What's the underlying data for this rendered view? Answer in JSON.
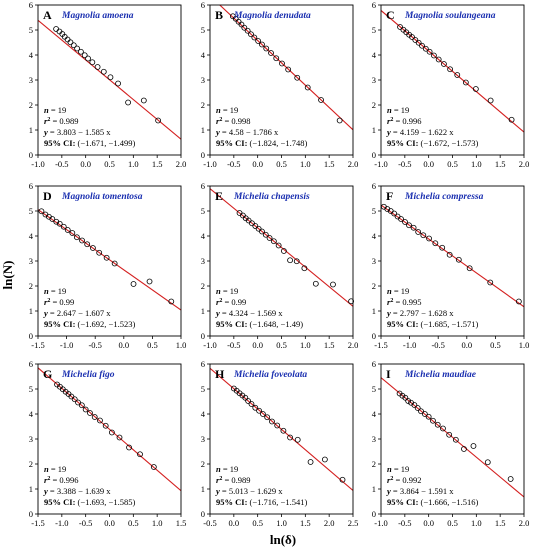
{
  "figure": {
    "ylabel_main": "ln(N)",
    "xlabel_main": "ln(δ)",
    "colors": {
      "fit_line": "#d42020",
      "species_title": "#1a2fb0",
      "axis": "#000000",
      "points": "#000000"
    }
  },
  "chart_data": [
    {
      "type": "scatter",
      "panel": "A",
      "title": "Magnolia amoena",
      "xlim": [
        -1.0,
        2.0
      ],
      "ylim": [
        0,
        6
      ],
      "xticks": [
        "-1.0",
        "-0.5",
        "0.0",
        "0.5",
        "1.0",
        "1.5",
        "2.0"
      ],
      "yticks": [
        "0",
        "1",
        "2",
        "3",
        "4",
        "5",
        "6"
      ],
      "stats": {
        "n": "= 19",
        "r2": "= 0.989",
        "eq": "= 3.803 − 1.585 x",
        "ci": "(−1.671, −1.499)"
      },
      "fit": {
        "intercept": 3.803,
        "slope": -1.585
      },
      "points": {
        "x": [
          -0.62,
          -0.55,
          -0.49,
          -0.44,
          -0.38,
          -0.32,
          -0.25,
          -0.18,
          -0.1,
          -0.02,
          0.05,
          0.14,
          0.25,
          0.38,
          0.52,
          0.68,
          0.89,
          1.22,
          1.52
        ],
        "y": [
          5.04,
          4.94,
          4.84,
          4.73,
          4.62,
          4.51,
          4.39,
          4.26,
          4.13,
          3.99,
          3.86,
          3.71,
          3.52,
          3.33,
          3.11,
          2.86,
          2.1,
          2.18,
          1.38
        ]
      }
    },
    {
      "type": "scatter",
      "panel": "B",
      "title": "Magnolia denudata",
      "xlim": [
        -1.0,
        2.0
      ],
      "ylim": [
        0,
        6
      ],
      "xticks": [
        "-1.0",
        "-0.5",
        "0.0",
        "0.5",
        "1.0",
        "1.5",
        "2.0"
      ],
      "yticks": [
        "0",
        "1",
        "2",
        "3",
        "4",
        "5",
        "6"
      ],
      "stats": {
        "n": "= 19",
        "r2": "= 0.998",
        "eq": "= 4.58 − 1.786 x",
        "ci": "(−1.824, −1.748)"
      },
      "fit": {
        "intercept": 4.58,
        "slope": -1.786
      },
      "points": {
        "x": [
          -0.52,
          -0.46,
          -0.4,
          -0.34,
          -0.28,
          -0.21,
          -0.14,
          -0.07,
          0.01,
          0.09,
          0.18,
          0.28,
          0.39,
          0.51,
          0.64,
          0.83,
          1.05,
          1.33,
          1.72
        ],
        "y": [
          5.55,
          5.45,
          5.33,
          5.22,
          5.09,
          4.97,
          4.83,
          4.7,
          4.56,
          4.42,
          4.26,
          4.08,
          3.87,
          3.66,
          3.42,
          3.09,
          2.7,
          2.2,
          1.38
        ]
      }
    },
    {
      "type": "scatter",
      "panel": "C",
      "title": "Magnolia soulangeana",
      "xlim": [
        -1.0,
        2.0
      ],
      "ylim": [
        0,
        6
      ],
      "xticks": [
        "-1.0",
        "-0.5",
        "0.0",
        "0.5",
        "1.0",
        "1.5",
        "2.0"
      ],
      "yticks": [
        "0",
        "1",
        "2",
        "3",
        "4",
        "5",
        "6"
      ],
      "stats": {
        "n": "= 19",
        "r2": "= 0.996",
        "eq": "= 4.159 − 1.622 x",
        "ci": "(−1.672, −1.573)"
      },
      "fit": {
        "intercept": 4.159,
        "slope": -1.622
      },
      "points": {
        "x": [
          -0.6,
          -0.53,
          -0.47,
          -0.41,
          -0.35,
          -0.28,
          -0.21,
          -0.14,
          -0.06,
          0.02,
          0.11,
          0.21,
          0.32,
          0.45,
          0.6,
          0.78,
          0.99,
          1.3,
          1.74
        ],
        "y": [
          5.12,
          5.01,
          4.91,
          4.81,
          4.72,
          4.6,
          4.49,
          4.37,
          4.25,
          4.13,
          3.98,
          3.82,
          3.64,
          3.43,
          3.2,
          2.9,
          2.64,
          2.18,
          1.41
        ]
      }
    },
    {
      "type": "scatter",
      "panel": "D",
      "title": "Magnolia tomentosa",
      "xlim": [
        -1.5,
        1.0
      ],
      "ylim": [
        0,
        6
      ],
      "xticks": [
        "-1.5",
        "-1.0",
        "-0.5",
        "0.0",
        "0.5",
        "1.0"
      ],
      "yticks": [
        "0",
        "1",
        "2",
        "3",
        "4",
        "5",
        "6"
      ],
      "stats": {
        "n": "= 19",
        "r2": "= 0.99",
        "eq": "= 2.647 − 1.607 x",
        "ci": "(−1.692, −1.523)"
      },
      "fit": {
        "intercept": 2.647,
        "slope": -1.607
      },
      "points": {
        "x": [
          -1.44,
          -1.37,
          -1.31,
          -1.25,
          -1.18,
          -1.12,
          -1.05,
          -0.98,
          -0.9,
          -0.82,
          -0.73,
          -0.64,
          -0.54,
          -0.43,
          -0.3,
          -0.16,
          0.17,
          0.45,
          0.83
        ],
        "y": [
          4.99,
          4.86,
          4.77,
          4.68,
          4.57,
          4.49,
          4.37,
          4.24,
          4.12,
          3.95,
          3.82,
          3.67,
          3.52,
          3.33,
          3.13,
          2.9,
          2.08,
          2.18,
          1.38
        ]
      }
    },
    {
      "type": "scatter",
      "panel": "E",
      "title": "Michelia chapensis",
      "xlim": [
        -1.0,
        2.0
      ],
      "ylim": [
        0,
        6
      ],
      "xticks": [
        "-1.0",
        "-0.5",
        "0.0",
        "0.5",
        "1.0",
        "1.5",
        "2.0"
      ],
      "yticks": [
        "0",
        "1",
        "2",
        "3",
        "4",
        "5",
        "6"
      ],
      "stats": {
        "n": "= 19",
        "r2": "= 0.99",
        "eq": "= 4.324 − 1.569 x",
        "ci": "(−1.648, −1.49)"
      },
      "fit": {
        "intercept": 4.324,
        "slope": -1.569
      },
      "points": {
        "x": [
          -0.38,
          -0.31,
          -0.25,
          -0.19,
          -0.12,
          -0.05,
          0.02,
          0.09,
          0.17,
          0.25,
          0.34,
          0.44,
          0.55,
          0.68,
          0.82,
          0.98,
          1.22,
          1.58,
          1.96
        ],
        "y": [
          4.92,
          4.82,
          4.71,
          4.62,
          4.51,
          4.4,
          4.29,
          4.18,
          4.05,
          3.92,
          3.79,
          3.62,
          3.4,
          3.03,
          2.99,
          2.71,
          2.09,
          2.06,
          1.39
        ]
      }
    },
    {
      "type": "scatter",
      "panel": "F",
      "title": "Michelia compressa",
      "xlim": [
        -1.5,
        1.0
      ],
      "ylim": [
        0,
        6
      ],
      "xticks": [
        "-1.5",
        "-1.0",
        "-0.5",
        "0.0",
        "0.5",
        "1.0"
      ],
      "yticks": [
        "0",
        "1",
        "2",
        "3",
        "4",
        "5",
        "6"
      ],
      "stats": {
        "n": "= 19",
        "r2": "= 0.995",
        "eq": "= 2.797 − 1.628 x",
        "ci": "(−1.685, −1.571)"
      },
      "fit": {
        "intercept": 2.797,
        "slope": -1.628
      },
      "points": {
        "x": [
          -1.45,
          -1.39,
          -1.33,
          -1.27,
          -1.21,
          -1.15,
          -1.08,
          -1.01,
          -0.93,
          -0.85,
          -0.76,
          -0.66,
          -0.55,
          -0.43,
          -0.3,
          -0.14,
          0.05,
          0.41,
          0.91
        ],
        "y": [
          5.17,
          5.08,
          5.0,
          4.9,
          4.78,
          4.68,
          4.56,
          4.43,
          4.33,
          4.16,
          4.03,
          3.9,
          3.71,
          3.53,
          3.25,
          3.05,
          2.71,
          2.14,
          1.38
        ]
      }
    },
    {
      "type": "scatter",
      "panel": "G",
      "title": "Michelia figo",
      "xlim": [
        -1.5,
        1.5
      ],
      "ylim": [
        0,
        6
      ],
      "xticks": [
        "-1.5",
        "-1.0",
        "-0.5",
        "0.0",
        "0.5",
        "1.0",
        "1.5"
      ],
      "yticks": [
        "0",
        "1",
        "2",
        "3",
        "4",
        "5",
        "6"
      ],
      "stats": {
        "n": "= 19",
        "r2": "= 0.996",
        "eq": "= 3.388 − 1.639 x",
        "ci": "(−1.693, −1.585)"
      },
      "fit": {
        "intercept": 3.388,
        "slope": -1.639
      },
      "points": {
        "x": [
          -1.1,
          -1.04,
          -0.98,
          -0.92,
          -0.86,
          -0.8,
          -0.73,
          -0.66,
          -0.58,
          -0.5,
          -0.41,
          -0.31,
          -0.2,
          -0.08,
          0.05,
          0.21,
          0.41,
          0.64,
          0.93
        ],
        "y": [
          5.18,
          5.09,
          4.99,
          4.89,
          4.8,
          4.7,
          4.59,
          4.46,
          4.35,
          4.18,
          4.04,
          3.88,
          3.74,
          3.53,
          3.26,
          3.06,
          2.66,
          2.39,
          1.88
        ]
      }
    },
    {
      "type": "scatter",
      "panel": "H",
      "title": "Michelia foveolata",
      "xlim": [
        -0.5,
        2.5
      ],
      "ylim": [
        0,
        6
      ],
      "xticks": [
        "-0.5",
        "0.0",
        "0.5",
        "1.0",
        "1.5",
        "2.0",
        "2.5"
      ],
      "yticks": [
        "0",
        "1",
        "2",
        "3",
        "4",
        "5",
        "6"
      ],
      "stats": {
        "n": "= 19",
        "r2": "= 0.989",
        "eq": "= 5.013 − 1.629 x",
        "ci": "(−1.716, −1.541)"
      },
      "fit": {
        "intercept": 5.013,
        "slope": -1.629
      },
      "points": {
        "x": [
          0.0,
          0.06,
          0.12,
          0.18,
          0.24,
          0.3,
          0.37,
          0.45,
          0.53,
          0.61,
          0.7,
          0.8,
          0.91,
          1.04,
          1.18,
          1.34,
          1.61,
          1.91,
          2.28
        ],
        "y": [
          5.02,
          4.93,
          4.83,
          4.74,
          4.65,
          4.52,
          4.4,
          4.25,
          4.13,
          4.0,
          3.87,
          3.7,
          3.54,
          3.33,
          3.06,
          2.97,
          2.08,
          2.18,
          1.37
        ]
      }
    },
    {
      "type": "scatter",
      "panel": "I",
      "title": "Michelia maudiae",
      "xlim": [
        -1.0,
        2.0
      ],
      "ylim": [
        0,
        6
      ],
      "xticks": [
        "-1.0",
        "-0.5",
        "0.0",
        "0.5",
        "1.0",
        "1.5",
        "2.0"
      ],
      "yticks": [
        "0",
        "1",
        "2",
        "3",
        "4",
        "5",
        "6"
      ],
      "stats": {
        "n": "= 19",
        "r2": "= 0.992",
        "eq": "= 3.864 − 1.591 x",
        "ci": "(−1.666, −1.516)"
      },
      "fit": {
        "intercept": 3.864,
        "slope": -1.591
      },
      "points": {
        "x": [
          -0.61,
          -0.55,
          -0.49,
          -0.43,
          -0.37,
          -0.3,
          -0.23,
          -0.16,
          -0.08,
          0.0,
          0.09,
          0.19,
          0.3,
          0.43,
          0.57,
          0.74,
          0.94,
          1.24,
          1.72
        ],
        "y": [
          4.82,
          4.73,
          4.65,
          4.52,
          4.45,
          4.36,
          4.24,
          4.11,
          4.0,
          3.89,
          3.73,
          3.57,
          3.42,
          3.17,
          2.97,
          2.6,
          2.72,
          2.07,
          1.4
        ]
      }
    }
  ]
}
